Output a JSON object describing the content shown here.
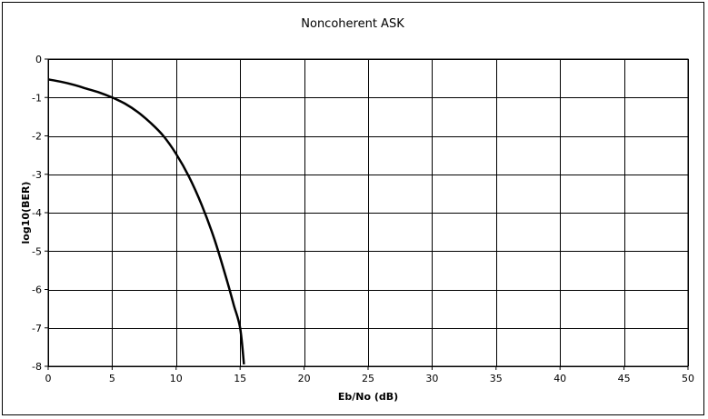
{
  "chart_data": {
    "type": "line",
    "title": "Noncoherent ASK",
    "xlabel": "Eb/No (dB)",
    "ylabel": "log10(BER)",
    "xlim": [
      0,
      50
    ],
    "ylim": [
      -8,
      0
    ],
    "xticks": [
      0,
      5,
      10,
      15,
      20,
      25,
      30,
      35,
      40,
      45,
      50
    ],
    "yticks": [
      0,
      -1,
      -2,
      -3,
      -4,
      -5,
      -6,
      -7,
      -8
    ],
    "grid": true,
    "legend": "none",
    "line_color": "#000000",
    "series": [
      {
        "x": [
          0,
          1,
          2,
          3,
          4,
          5,
          6,
          7,
          8,
          9,
          10,
          11,
          12,
          13,
          14,
          14.5,
          15,
          15.3
        ],
        "values": [
          -0.53,
          -0.59,
          -0.67,
          -0.77,
          -0.87,
          -1.0,
          -1.16,
          -1.38,
          -1.66,
          -2.0,
          -2.47,
          -3.06,
          -3.8,
          -4.7,
          -5.8,
          -6.4,
          -7.0,
          -7.95
        ]
      }
    ]
  }
}
